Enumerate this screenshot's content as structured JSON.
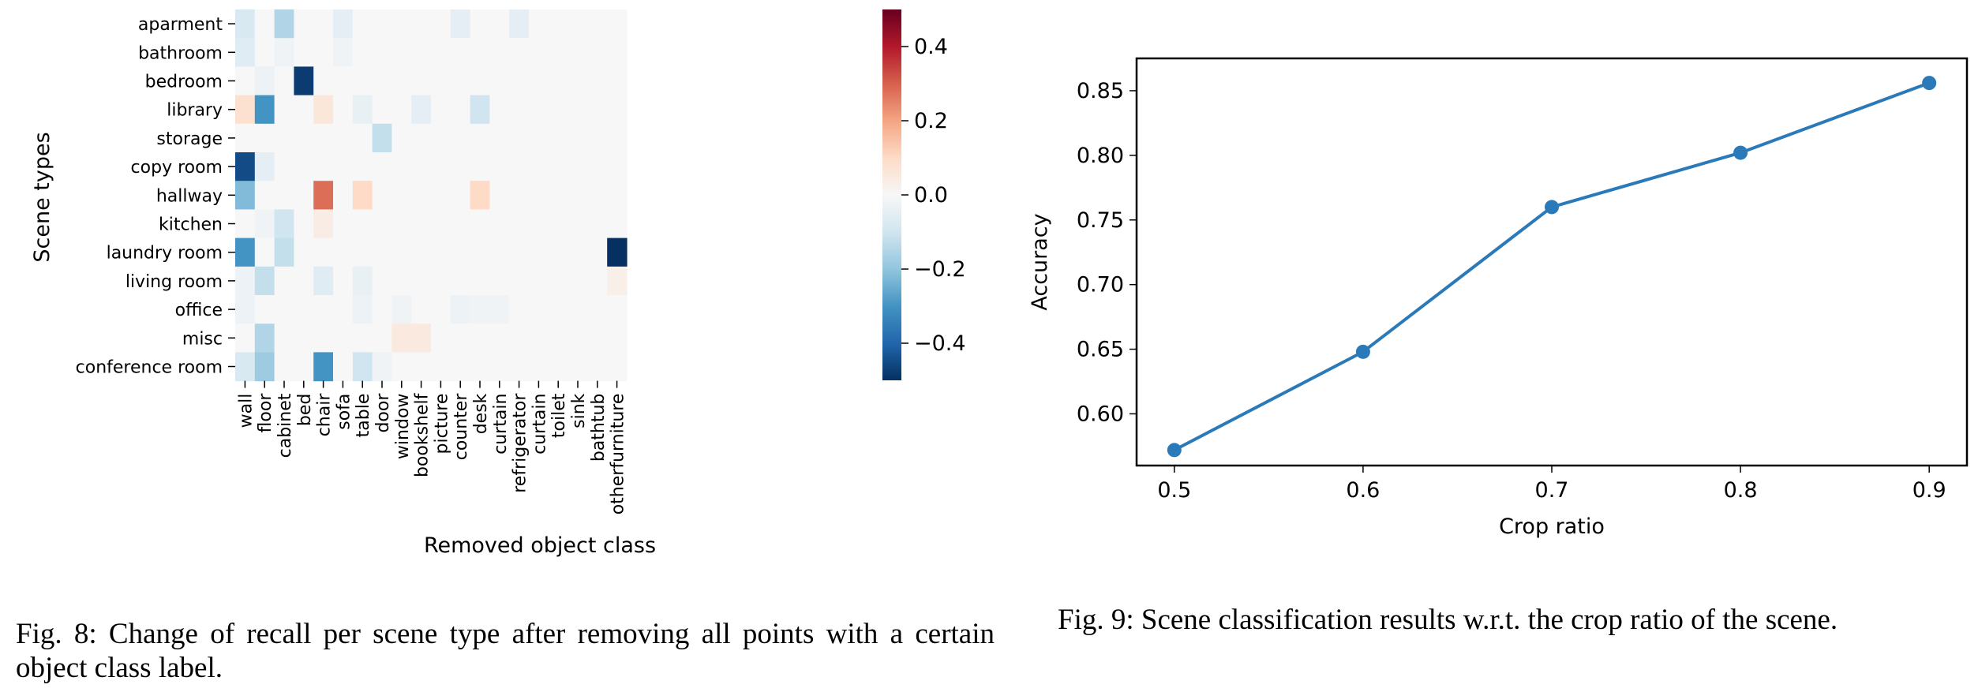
{
  "chart_data": [
    {
      "type": "heatmap",
      "xlabel": "Removed object class",
      "ylabel": "Scene types",
      "rows": [
        "aparment",
        "bathroom",
        "bedroom",
        "library",
        "storage",
        "copy room",
        "hallway",
        "kitchen",
        "laundry room",
        "living room",
        "office",
        "misc",
        "conference room"
      ],
      "columns": [
        "wall",
        "floor",
        "cabinet",
        "bed",
        "chair",
        "sofa",
        "table",
        "door",
        "window",
        "bookshelf",
        "picture",
        "counter",
        "desk",
        "curtain",
        "refrigerator",
        "curtain",
        "toilet",
        "sink",
        "bathtub",
        "otherfurniture"
      ],
      "values": [
        [
          -0.08,
          0,
          -0.15,
          0,
          0,
          -0.05,
          0,
          0,
          0,
          0,
          0,
          -0.05,
          0,
          0,
          -0.05,
          0,
          0,
          0,
          0,
          0
        ],
        [
          -0.06,
          0,
          -0.02,
          0,
          0,
          -0.02,
          0,
          0,
          0,
          0,
          0,
          0,
          0,
          0,
          0,
          0,
          0,
          0,
          0,
          0
        ],
        [
          0,
          -0.03,
          0,
          -0.48,
          0,
          0,
          0,
          0,
          0,
          0,
          0,
          0,
          0,
          0,
          0,
          0,
          0,
          0,
          0,
          0
        ],
        [
          0.08,
          -0.3,
          0,
          0,
          0.06,
          0,
          -0.04,
          0,
          0,
          -0.05,
          0,
          0,
          -0.1,
          0,
          0,
          0,
          0,
          0,
          0,
          0
        ],
        [
          0,
          0,
          0,
          0,
          0,
          0,
          0,
          -0.12,
          0,
          0,
          0,
          0,
          0,
          0,
          0,
          0,
          0,
          0,
          0,
          0
        ],
        [
          -0.45,
          -0.05,
          0,
          0,
          0,
          0,
          0,
          0,
          0,
          0,
          0,
          0,
          0,
          0,
          0,
          0,
          0,
          0,
          0,
          0
        ],
        [
          -0.22,
          0,
          0,
          0,
          0.28,
          0,
          0.1,
          0,
          0,
          0,
          0,
          0,
          0.1,
          0,
          0,
          0,
          0,
          0,
          0,
          0
        ],
        [
          0,
          -0.02,
          -0.1,
          0,
          0.04,
          0,
          0,
          0,
          0,
          0,
          0,
          0,
          0,
          0,
          0,
          0,
          0,
          0,
          0,
          0
        ],
        [
          -0.3,
          0,
          -0.12,
          0,
          0,
          0,
          0,
          0,
          0,
          0,
          0,
          0,
          0,
          0,
          0,
          0,
          0,
          0,
          0,
          -0.5
        ],
        [
          -0.03,
          -0.12,
          0,
          0,
          -0.06,
          0,
          -0.04,
          0,
          0,
          0,
          0,
          0,
          0,
          0,
          0,
          0,
          0,
          0,
          0,
          0.03
        ],
        [
          -0.03,
          0,
          0,
          0,
          0,
          0,
          -0.03,
          0,
          -0.02,
          0,
          0,
          -0.03,
          -0.02,
          -0.02,
          0,
          0,
          0,
          0,
          0,
          0
        ],
        [
          0,
          -0.15,
          0,
          0,
          0,
          0,
          0,
          0,
          0.05,
          0.05,
          0,
          0,
          0,
          0,
          0,
          0,
          0,
          0,
          0,
          0
        ],
        [
          -0.08,
          -0.18,
          0,
          0,
          -0.3,
          0,
          -0.1,
          -0.02,
          0,
          0,
          0,
          0,
          0,
          0,
          0,
          0,
          0,
          0,
          0,
          0
        ]
      ],
      "colorbar": {
        "range": [
          -0.5,
          0.5
        ],
        "ticks": [
          0.4,
          0.2,
          0.0,
          -0.2,
          -0.4
        ],
        "tick_labels": [
          "0.4",
          "0.2",
          "0.0",
          "−0.2",
          "−0.4"
        ],
        "colormap": "RdBu_r"
      }
    },
    {
      "type": "line",
      "xlabel": "Crop ratio",
      "ylabel": "Accuracy",
      "x": [
        0.5,
        0.6,
        0.7,
        0.8,
        0.9
      ],
      "y": [
        0.572,
        0.648,
        0.76,
        0.802,
        0.856
      ],
      "xlim": [
        0.48,
        0.92
      ],
      "ylim": [
        0.56,
        0.875
      ],
      "xticks": [
        0.5,
        0.6,
        0.7,
        0.8,
        0.9
      ],
      "xtick_labels": [
        "0.5",
        "0.6",
        "0.7",
        "0.8",
        "0.9"
      ],
      "yticks": [
        0.6,
        0.65,
        0.7,
        0.75,
        0.8,
        0.85
      ],
      "ytick_labels": [
        "0.60",
        "0.65",
        "0.70",
        "0.75",
        "0.80",
        "0.85"
      ],
      "color": "#2a7ab9",
      "marker": "circle",
      "grid": false
    }
  ],
  "captions": {
    "fig8": "Fig. 8: Change of recall per scene type after removing all points with a certain object class label.",
    "fig9": "Fig. 9: Scene classification results w.r.t. the crop ratio of the scene."
  }
}
